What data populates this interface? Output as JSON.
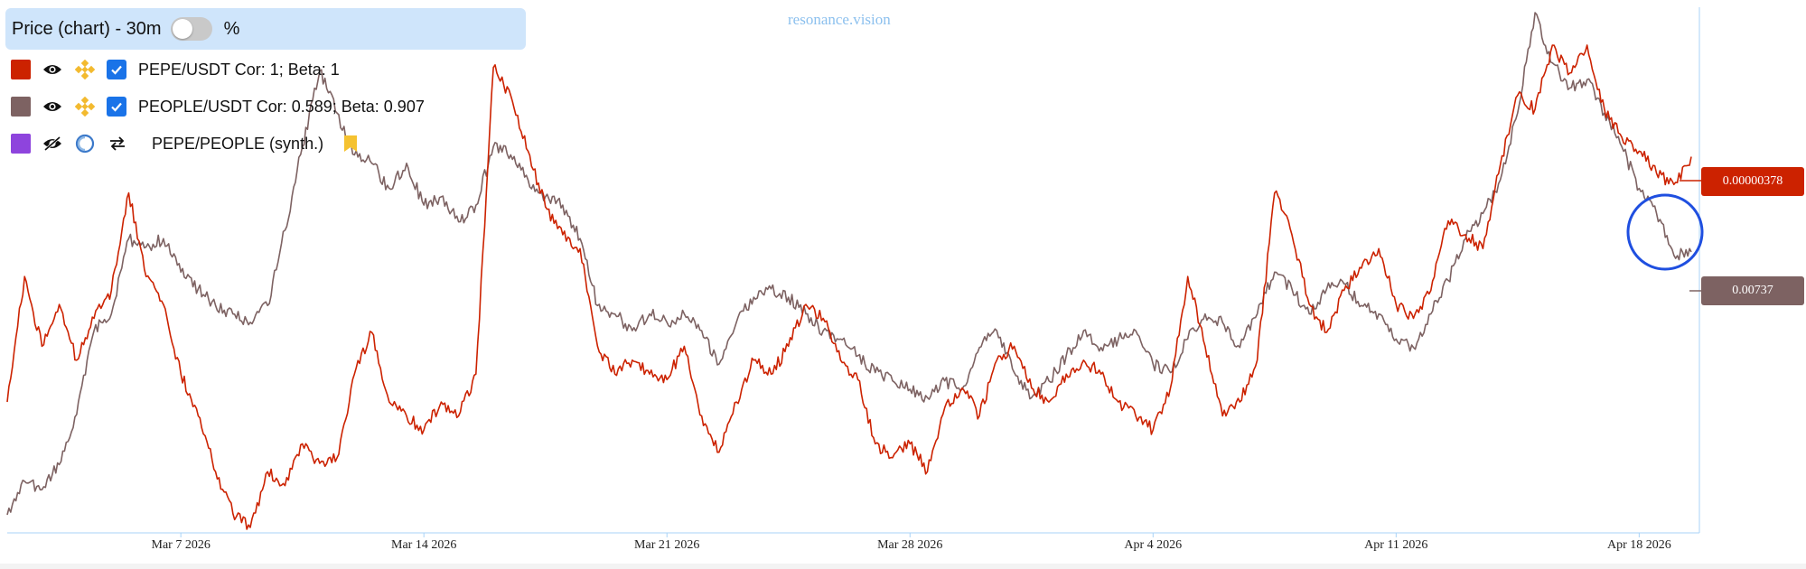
{
  "header": {
    "title": "Price (chart) - 30m",
    "percent_toggle_on": false,
    "percent_label": "%"
  },
  "watermark": "resonance.vision",
  "legend": [
    {
      "label": "PEPE/USDT Cor: 1; Beta: 1",
      "color": "#cc2200",
      "visible": true,
      "icon": "binance-icon",
      "checked": true
    },
    {
      "label": "PEOPLE/USDT Cor: 0.589; Beta: 0.907",
      "color": "#7d6262",
      "visible": true,
      "icon": "binance-icon",
      "checked": true
    },
    {
      "label": "PEPE/PEOPLE (synth.)",
      "color": "#8e44dd",
      "visible": false,
      "icon": "synthetic-icon",
      "swap_icon": "swap-icon",
      "bookmark_icon": "bookmark-icon"
    }
  ],
  "price_labels": {
    "pepe": {
      "text": "0.00000378",
      "color": "#cc2200"
    },
    "people": {
      "text": "0.00737",
      "color": "#7d6262"
    }
  },
  "annotation": {
    "shape": "circle",
    "color": "#1f4fe0"
  },
  "chart_data": {
    "type": "line",
    "interval": "30m",
    "x_type": "date",
    "x_range": [
      "2026-03-02T00:00",
      "2026-04-19T12:00"
    ],
    "x_ticks": [
      "Mar 7 2026",
      "Mar 14 2026",
      "Mar 21 2026",
      "Mar 28 2026",
      "Apr 4 2026",
      "Apr 11 2026",
      "Apr 18 2026"
    ],
    "y_scale": "normalized, no visible y axis",
    "grid": false,
    "series": [
      {
        "name": "PEPE/USDT",
        "color": "#cc2200",
        "last_value": 3.78e-06,
        "points": [
          [
            "2026-03-02T00:00",
            2.9e-06
          ],
          [
            "2026-03-02T12:00",
            3.35e-06
          ],
          [
            "2026-03-03T00:00",
            3.1e-06
          ],
          [
            "2026-03-03T12:00",
            3.25e-06
          ],
          [
            "2026-03-04T00:00",
            3.05e-06
          ],
          [
            "2026-03-04T12:00",
            3.2e-06
          ],
          [
            "2026-03-05T00:00",
            3.3e-06
          ],
          [
            "2026-03-05T12:00",
            3.65e-06
          ],
          [
            "2026-03-06T00:00",
            3.35e-06
          ],
          [
            "2026-03-06T12:00",
            3.25e-06
          ],
          [
            "2026-03-07T00:00",
            3e-06
          ],
          [
            "2026-03-07T12:00",
            2.85e-06
          ],
          [
            "2026-03-08T00:00",
            2.65e-06
          ],
          [
            "2026-03-08T12:00",
            2.5e-06
          ],
          [
            "2026-03-09T00:00",
            2.45e-06
          ],
          [
            "2026-03-09T12:00",
            2.65e-06
          ],
          [
            "2026-03-10T00:00",
            2.6e-06
          ],
          [
            "2026-03-10T12:00",
            2.75e-06
          ],
          [
            "2026-03-11T00:00",
            2.68e-06
          ],
          [
            "2026-03-11T12:00",
            2.7e-06
          ],
          [
            "2026-03-12T00:00",
            3e-06
          ],
          [
            "2026-03-12T12:00",
            3.15e-06
          ],
          [
            "2026-03-13T00:00",
            2.9e-06
          ],
          [
            "2026-03-13T12:00",
            2.85e-06
          ],
          [
            "2026-03-14T00:00",
            2.8e-06
          ],
          [
            "2026-03-14T12:00",
            2.9e-06
          ],
          [
            "2026-03-15T00:00",
            2.85e-06
          ],
          [
            "2026-03-15T12:00",
            3e-06
          ],
          [
            "2026-03-16T00:00",
            4.1e-06
          ],
          [
            "2026-03-16T12:00",
            4e-06
          ],
          [
            "2026-03-17T00:00",
            3.8e-06
          ],
          [
            "2026-03-17T12:00",
            3.6e-06
          ],
          [
            "2026-03-18T00:00",
            3.5e-06
          ],
          [
            "2026-03-18T12:00",
            3.45e-06
          ],
          [
            "2026-03-19T00:00",
            3.1e-06
          ],
          [
            "2026-03-19T12:00",
            3e-06
          ],
          [
            "2026-03-20T00:00",
            3.05e-06
          ],
          [
            "2026-03-20T12:00",
            3e-06
          ],
          [
            "2026-03-21T00:00",
            2.98e-06
          ],
          [
            "2026-03-21T12:00",
            3.1e-06
          ],
          [
            "2026-03-22T00:00",
            2.85e-06
          ],
          [
            "2026-03-22T12:00",
            2.72e-06
          ],
          [
            "2026-03-23T00:00",
            2.9e-06
          ],
          [
            "2026-03-23T12:00",
            3.05e-06
          ],
          [
            "2026-03-24T00:00",
            3e-06
          ],
          [
            "2026-03-24T12:00",
            3.1e-06
          ],
          [
            "2026-03-25T00:00",
            3.25e-06
          ],
          [
            "2026-03-25T12:00",
            3.2e-06
          ],
          [
            "2026-03-26T00:00",
            3.05e-06
          ],
          [
            "2026-03-26T12:00",
            2.98e-06
          ],
          [
            "2026-03-27T00:00",
            2.75e-06
          ],
          [
            "2026-03-27T12:00",
            2.7e-06
          ],
          [
            "2026-03-28T00:00",
            2.75e-06
          ],
          [
            "2026-03-28T12:00",
            2.65e-06
          ],
          [
            "2026-03-29T00:00",
            2.88e-06
          ],
          [
            "2026-03-29T12:00",
            2.95e-06
          ],
          [
            "2026-03-30T00:00",
            2.85e-06
          ],
          [
            "2026-03-30T12:00",
            3.05e-06
          ],
          [
            "2026-03-31T00:00",
            3.1e-06
          ],
          [
            "2026-03-31T12:00",
            2.95e-06
          ],
          [
            "2026-04-01T00:00",
            2.9e-06
          ],
          [
            "2026-04-01T12:00",
            3e-06
          ],
          [
            "2026-04-02T00:00",
            3.05e-06
          ],
          [
            "2026-04-02T12:00",
            3e-06
          ],
          [
            "2026-04-03T00:00",
            2.9e-06
          ],
          [
            "2026-04-03T12:00",
            2.85e-06
          ],
          [
            "2026-04-04T00:00",
            2.8e-06
          ],
          [
            "2026-04-04T12:00",
            2.95e-06
          ],
          [
            "2026-04-05T00:00",
            3.35e-06
          ],
          [
            "2026-04-05T12:00",
            3.1e-06
          ],
          [
            "2026-04-06T00:00",
            2.85e-06
          ],
          [
            "2026-04-06T12:00",
            2.9e-06
          ],
          [
            "2026-04-07T00:00",
            3.05e-06
          ],
          [
            "2026-04-07T12:00",
            3.65e-06
          ],
          [
            "2026-04-08T00:00",
            3.5e-06
          ],
          [
            "2026-04-08T12:00",
            3.25e-06
          ],
          [
            "2026-04-09T00:00",
            3.15e-06
          ],
          [
            "2026-04-09T12:00",
            3.3e-06
          ],
          [
            "2026-04-10T00:00",
            3.38e-06
          ],
          [
            "2026-04-10T12:00",
            3.45e-06
          ],
          [
            "2026-04-11T00:00",
            3.25e-06
          ],
          [
            "2026-04-11T12:00",
            3.2e-06
          ],
          [
            "2026-04-12T00:00",
            3.3e-06
          ],
          [
            "2026-04-12T12:00",
            3.55e-06
          ],
          [
            "2026-04-13T00:00",
            3.5e-06
          ],
          [
            "2026-04-13T12:00",
            3.45e-06
          ],
          [
            "2026-04-14T00:00",
            3.75e-06
          ],
          [
            "2026-04-14T12:00",
            4e-06
          ],
          [
            "2026-04-15T00:00",
            3.95e-06
          ],
          [
            "2026-04-15T12:00",
            4.18e-06
          ],
          [
            "2026-04-16T00:00",
            4.08e-06
          ],
          [
            "2026-04-16T12:00",
            4.18e-06
          ],
          [
            "2026-04-17T00:00",
            3.95e-06
          ],
          [
            "2026-04-17T12:00",
            3.85e-06
          ],
          [
            "2026-04-18T00:00",
            3.8e-06
          ],
          [
            "2026-04-18T12:00",
            3.72e-06
          ],
          [
            "2026-04-19T00:00",
            3.68e-06
          ],
          [
            "2026-04-19T12:00",
            3.78e-06
          ]
        ]
      },
      {
        "name": "PEOPLE/USDT",
        "color": "#7d6262",
        "last_value": 0.00737,
        "points": [
          [
            "2026-03-02T00:00",
            0.0058
          ],
          [
            "2026-03-02T12:00",
            0.006
          ],
          [
            "2026-03-03T00:00",
            0.00595
          ],
          [
            "2026-03-03T12:00",
            0.0061
          ],
          [
            "2026-03-04T00:00",
            0.0064
          ],
          [
            "2026-03-04T12:00",
            0.0069
          ],
          [
            "2026-03-05T00:00",
            0.007
          ],
          [
            "2026-03-05T12:00",
            0.00745
          ],
          [
            "2026-03-06T00:00",
            0.0074
          ],
          [
            "2026-03-06T12:00",
            0.00745
          ],
          [
            "2026-03-07T00:00",
            0.00725
          ],
          [
            "2026-03-07T12:00",
            0.00715
          ],
          [
            "2026-03-08T00:00",
            0.00705
          ],
          [
            "2026-03-08T12:00",
            0.007
          ],
          [
            "2026-03-09T00:00",
            0.00695
          ],
          [
            "2026-03-09T12:00",
            0.00705
          ],
          [
            "2026-03-10T00:00",
            0.0075
          ],
          [
            "2026-03-10T12:00",
            0.008
          ],
          [
            "2026-03-11T00:00",
            0.00845
          ],
          [
            "2026-03-11T12:00",
            0.0082
          ],
          [
            "2026-03-12T00:00",
            0.00795
          ],
          [
            "2026-03-12T12:00",
            0.0079
          ],
          [
            "2026-03-13T00:00",
            0.00775
          ],
          [
            "2026-03-13T12:00",
            0.0079
          ],
          [
            "2026-03-14T00:00",
            0.00765
          ],
          [
            "2026-03-14T12:00",
            0.0077
          ],
          [
            "2026-03-15T00:00",
            0.00755
          ],
          [
            "2026-03-15T12:00",
            0.00765
          ],
          [
            "2026-03-16T00:00",
            0.008
          ],
          [
            "2026-03-16T12:00",
            0.00795
          ],
          [
            "2026-03-17T00:00",
            0.0078
          ],
          [
            "2026-03-17T12:00",
            0.0077
          ],
          [
            "2026-03-18T00:00",
            0.00765
          ],
          [
            "2026-03-18T12:00",
            0.00745
          ],
          [
            "2026-03-19T00:00",
            0.00705
          ],
          [
            "2026-03-19T12:00",
            0.007
          ],
          [
            "2026-03-20T00:00",
            0.0069
          ],
          [
            "2026-03-20T12:00",
            0.007
          ],
          [
            "2026-03-21T00:00",
            0.00695
          ],
          [
            "2026-03-21T12:00",
            0.007
          ],
          [
            "2026-03-22T00:00",
            0.0069
          ],
          [
            "2026-03-22T12:00",
            0.0067
          ],
          [
            "2026-03-23T00:00",
            0.00695
          ],
          [
            "2026-03-23T12:00",
            0.0071
          ],
          [
            "2026-03-24T00:00",
            0.00715
          ],
          [
            "2026-03-24T12:00",
            0.0071
          ],
          [
            "2026-03-25T00:00",
            0.007
          ],
          [
            "2026-03-25T12:00",
            0.0069
          ],
          [
            "2026-03-26T00:00",
            0.00685
          ],
          [
            "2026-03-26T12:00",
            0.00675
          ],
          [
            "2026-03-27T00:00",
            0.00665
          ],
          [
            "2026-03-27T12:00",
            0.0066
          ],
          [
            "2026-03-28T00:00",
            0.00655
          ],
          [
            "2026-03-28T12:00",
            0.0065
          ],
          [
            "2026-03-29T00:00",
            0.0066
          ],
          [
            "2026-03-29T12:00",
            0.00655
          ],
          [
            "2026-03-30T00:00",
            0.0068
          ],
          [
            "2026-03-30T12:00",
            0.0069
          ],
          [
            "2026-03-31T00:00",
            0.00665
          ],
          [
            "2026-03-31T12:00",
            0.0065
          ],
          [
            "2026-04-01T00:00",
            0.0066
          ],
          [
            "2026-04-01T12:00",
            0.00675
          ],
          [
            "2026-04-02T00:00",
            0.0069
          ],
          [
            "2026-04-02T12:00",
            0.0068
          ],
          [
            "2026-04-03T00:00",
            0.00685
          ],
          [
            "2026-04-03T12:00",
            0.0069
          ],
          [
            "2026-04-04T00:00",
            0.0067
          ],
          [
            "2026-04-04T12:00",
            0.00665
          ],
          [
            "2026-04-05T00:00",
            0.00685
          ],
          [
            "2026-04-05T12:00",
            0.007
          ],
          [
            "2026-04-06T00:00",
            0.00695
          ],
          [
            "2026-04-06T12:00",
            0.0068
          ],
          [
            "2026-04-07T00:00",
            0.007
          ],
          [
            "2026-04-07T12:00",
            0.00725
          ],
          [
            "2026-04-08T00:00",
            0.00715
          ],
          [
            "2026-04-08T12:00",
            0.007
          ],
          [
            "2026-04-09T00:00",
            0.00715
          ],
          [
            "2026-04-09T12:00",
            0.00718
          ],
          [
            "2026-04-10T00:00",
            0.00705
          ],
          [
            "2026-04-10T12:00",
            0.007
          ],
          [
            "2026-04-11T00:00",
            0.00685
          ],
          [
            "2026-04-11T12:00",
            0.0068
          ],
          [
            "2026-04-12T00:00",
            0.007
          ],
          [
            "2026-04-12T12:00",
            0.0072
          ],
          [
            "2026-04-13T00:00",
            0.00745
          ],
          [
            "2026-04-13T12:00",
            0.0076
          ],
          [
            "2026-04-14T00:00",
            0.0078
          ],
          [
            "2026-04-14T12:00",
            0.0082
          ],
          [
            "2026-04-15T00:00",
            0.0088
          ],
          [
            "2026-04-15T12:00",
            0.0085
          ],
          [
            "2026-04-16T00:00",
            0.00835
          ],
          [
            "2026-04-16T12:00",
            0.0084
          ],
          [
            "2026-04-17T00:00",
            0.0082
          ],
          [
            "2026-04-17T12:00",
            0.008
          ],
          [
            "2026-04-18T00:00",
            0.00775
          ],
          [
            "2026-04-18T12:00",
            0.0076
          ],
          [
            "2026-04-19T00:00",
            0.00735
          ],
          [
            "2026-04-19T12:00",
            0.00737
          ]
        ]
      }
    ]
  }
}
